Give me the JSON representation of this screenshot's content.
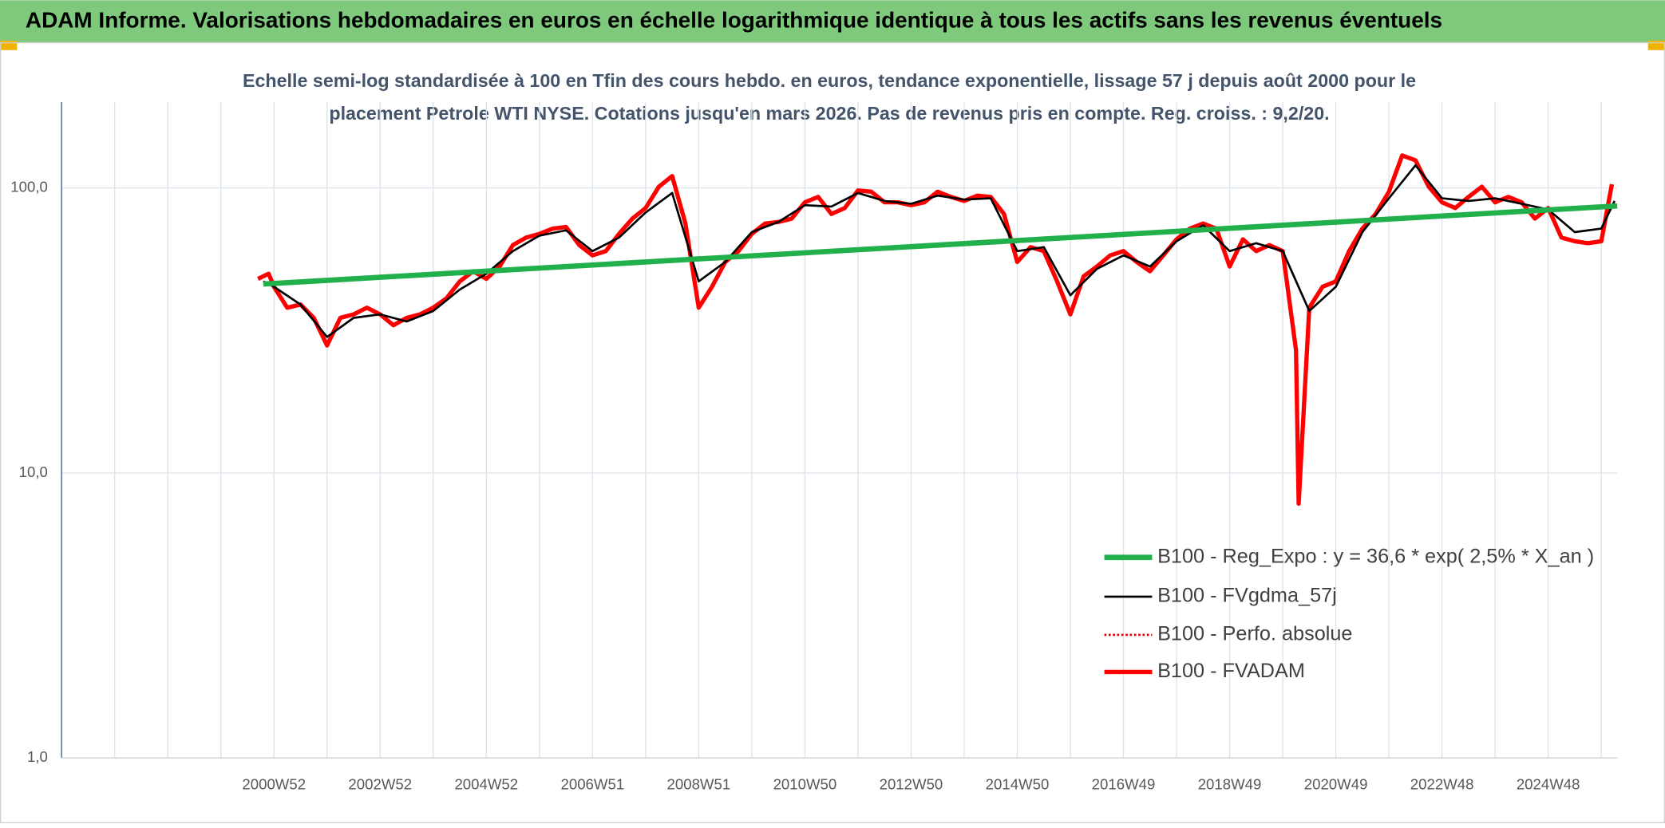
{
  "chart_data": {
    "type": "line",
    "title": "ADAM Informe. Valorisations hebdomadaires en euros en échelle logarithmique identique à tous les actifs sans les revenus éventuels",
    "subtitle": [
      "Echelle semi-log standardisée à 100 en Tfin des cours hebdo. en euros, tendance exponentielle, lissage 57 j depuis août 2000 pour le",
      "placement Petrole WTI NYSE. Cotations jusqu'en mars 2026. Pas de revenus pris en compte. Reg. croiss. : 9,2/20."
    ],
    "log_scale": true,
    "grid": true,
    "legend": "bottom-right",
    "xlim": [
      1997,
      2026.3
    ],
    "xticks": [
      {
        "value": 2001,
        "label": "2000W52"
      },
      {
        "value": 2003,
        "label": "2002W52"
      },
      {
        "value": 2005,
        "label": "2004W52"
      },
      {
        "value": 2007,
        "label": "2006W51"
      },
      {
        "value": 2009,
        "label": "2008W51"
      },
      {
        "value": 2011,
        "label": "2010W50"
      },
      {
        "value": 2013,
        "label": "2012W50"
      },
      {
        "value": 2015,
        "label": "2014W50"
      },
      {
        "value": 2017,
        "label": "2016W49"
      },
      {
        "value": 2019,
        "label": "2018W49"
      },
      {
        "value": 2021,
        "label": "2020W49"
      },
      {
        "value": 2023,
        "label": "2022W48"
      },
      {
        "value": 2025,
        "label": "2024W48"
      }
    ],
    "ylim": [
      1,
      200
    ],
    "yticks": [
      {
        "value": 1,
        "label": "1,0"
      },
      {
        "value": 10,
        "label": "10,0"
      },
      {
        "value": 100,
        "label": "100,0"
      }
    ],
    "series": [
      {
        "name": "B100 - Reg_Expo : y = 36,6 * exp( 2,5% *  X_an )",
        "color": "#22b04c",
        "width": 5,
        "dash": "solid",
        "x": [
          2000.8,
          2026.3
        ],
        "values": [
          46,
          86.5
        ]
      },
      {
        "name": "B100 - FVgdma_57j",
        "color": "#000000",
        "width": 2,
        "dash": "solid",
        "x": [
          2000.8,
          2001.0,
          2001.5,
          2002.0,
          2002.5,
          2003.0,
          2003.5,
          2004.0,
          2004.5,
          2005.0,
          2005.5,
          2006.0,
          2006.5,
          2007.0,
          2007.5,
          2008.0,
          2008.5,
          2009.0,
          2009.5,
          2010.0,
          2010.5,
          2011.0,
          2011.5,
          2012.0,
          2012.5,
          2013.0,
          2013.5,
          2014.0,
          2014.5,
          2015.0,
          2015.5,
          2016.0,
          2016.5,
          2017.0,
          2017.5,
          2018.0,
          2018.5,
          2019.0,
          2019.5,
          2020.0,
          2020.5,
          2021.0,
          2021.5,
          2022.0,
          2022.5,
          2023.0,
          2023.5,
          2024.0,
          2024.5,
          2025.0,
          2025.5,
          2026.0,
          2026.25
        ],
        "values": [
          47,
          45,
          39,
          30,
          35,
          36,
          34,
          37,
          44,
          50,
          60,
          68,
          71,
          60,
          67,
          82,
          96,
          47,
          55,
          70,
          76,
          87,
          86,
          96,
          90,
          88,
          94,
          91,
          92,
          60,
          62,
          42,
          52,
          58,
          53,
          65,
          74,
          60,
          64,
          60,
          37,
          45,
          70,
          92,
          120,
          92,
          90,
          92,
          88,
          84,
          70,
          72,
          90
        ]
      },
      {
        "name": "B100 - Perfo. absolue",
        "color": "#e00000",
        "width": 2,
        "dash": "dotted",
        "x": [
          2000.7,
          2000.9,
          2001.0,
          2001.25,
          2001.5,
          2001.75,
          2002.0,
          2002.25,
          2002.5,
          2002.75,
          2003.0,
          2003.25,
          2003.5,
          2003.75,
          2004.0,
          2004.25,
          2004.5,
          2004.75,
          2005.0,
          2005.25,
          2005.5,
          2005.75,
          2006.0,
          2006.25,
          2006.5,
          2006.75,
          2007.0,
          2007.25,
          2007.5,
          2007.75,
          2008.0,
          2008.25,
          2008.5,
          2008.75,
          2009.0,
          2009.25,
          2009.5,
          2009.75,
          2010.0,
          2010.25,
          2010.5,
          2010.75,
          2011.0,
          2011.25,
          2011.5,
          2011.75,
          2012.0,
          2012.25,
          2012.5,
          2012.75,
          2013.0,
          2013.25,
          2013.5,
          2013.75,
          2014.0,
          2014.25,
          2014.5,
          2014.75,
          2015.0,
          2015.25,
          2015.5,
          2015.75,
          2016.0,
          2016.25,
          2016.5,
          2016.75,
          2017.0,
          2017.25,
          2017.5,
          2017.75,
          2018.0,
          2018.25,
          2018.5,
          2018.75,
          2019.0,
          2019.25,
          2019.5,
          2019.75,
          2020.0,
          2020.25,
          2020.3,
          2020.5,
          2020.75,
          2021.0,
          2021.25,
          2021.5,
          2021.75,
          2022.0,
          2022.25,
          2022.5,
          2022.75,
          2023.0,
          2023.25,
          2023.5,
          2023.75,
          2024.0,
          2024.25,
          2024.5,
          2024.75,
          2025.0,
          2025.25,
          2025.5,
          2025.75,
          2026.0,
          2026.2
        ],
        "values": [
          48,
          50,
          45,
          38,
          39,
          35,
          28,
          35,
          36,
          38,
          36,
          33,
          35,
          36,
          38,
          41,
          47,
          51,
          48,
          53,
          63,
          67,
          69,
          72,
          73,
          63,
          58,
          60,
          69,
          78,
          85,
          101,
          110,
          75,
          38,
          45,
          55,
          60,
          69,
          75,
          76,
          78,
          89,
          93,
          81,
          85,
          98,
          97,
          89,
          89,
          87,
          89,
          97,
          93,
          90,
          94,
          93,
          81,
          55,
          62,
          60,
          47,
          36,
          49,
          53,
          58,
          60,
          55,
          51,
          58,
          66,
          72,
          75,
          72,
          53,
          66,
          60,
          63,
          60,
          27,
          7.8,
          38,
          45,
          47,
          60,
          72,
          81,
          97,
          130,
          125,
          101,
          89,
          85,
          93,
          101,
          89,
          93,
          89,
          78,
          85,
          67,
          65,
          64,
          65,
          103
        ]
      },
      {
        "name": "B100 - FVADAM",
        "color": "#ff0000",
        "width": 4,
        "dash": "solid",
        "x": [
          2000.7,
          2000.9,
          2001.0,
          2001.25,
          2001.5,
          2001.75,
          2002.0,
          2002.25,
          2002.5,
          2002.75,
          2003.0,
          2003.25,
          2003.5,
          2003.75,
          2004.0,
          2004.25,
          2004.5,
          2004.75,
          2005.0,
          2005.25,
          2005.5,
          2005.75,
          2006.0,
          2006.25,
          2006.5,
          2006.75,
          2007.0,
          2007.25,
          2007.5,
          2007.75,
          2008.0,
          2008.25,
          2008.5,
          2008.75,
          2009.0,
          2009.25,
          2009.5,
          2009.75,
          2010.0,
          2010.25,
          2010.5,
          2010.75,
          2011.0,
          2011.25,
          2011.5,
          2011.75,
          2012.0,
          2012.25,
          2012.5,
          2012.75,
          2013.0,
          2013.25,
          2013.5,
          2013.75,
          2014.0,
          2014.25,
          2014.5,
          2014.75,
          2015.0,
          2015.25,
          2015.5,
          2015.75,
          2016.0,
          2016.25,
          2016.5,
          2016.75,
          2017.0,
          2017.25,
          2017.5,
          2017.75,
          2018.0,
          2018.25,
          2018.5,
          2018.75,
          2019.0,
          2019.25,
          2019.5,
          2019.75,
          2020.0,
          2020.25,
          2020.3,
          2020.5,
          2020.75,
          2021.0,
          2021.25,
          2021.5,
          2021.75,
          2022.0,
          2022.25,
          2022.5,
          2022.75,
          2023.0,
          2023.25,
          2023.5,
          2023.75,
          2024.0,
          2024.25,
          2024.5,
          2024.75,
          2025.0,
          2025.25,
          2025.5,
          2025.75,
          2026.0,
          2026.2
        ],
        "values": [
          48,
          50,
          45,
          38,
          39,
          35,
          28,
          35,
          36,
          38,
          36,
          33,
          35,
          36,
          38,
          41,
          47,
          51,
          48,
          53,
          63,
          67,
          69,
          72,
          73,
          63,
          58,
          60,
          69,
          78,
          85,
          101,
          110,
          75,
          38,
          45,
          55,
          60,
          69,
          75,
          76,
          78,
          89,
          93,
          81,
          85,
          98,
          97,
          89,
          89,
          87,
          89,
          97,
          93,
          90,
          94,
          93,
          81,
          55,
          62,
          60,
          47,
          36,
          49,
          53,
          58,
          60,
          55,
          51,
          58,
          66,
          72,
          75,
          72,
          53,
          66,
          60,
          63,
          60,
          27,
          7.8,
          38,
          45,
          47,
          60,
          72,
          81,
          97,
          130,
          125,
          101,
          89,
          85,
          93,
          101,
          89,
          93,
          89,
          78,
          85,
          67,
          65,
          64,
          65,
          103
        ]
      }
    ]
  }
}
